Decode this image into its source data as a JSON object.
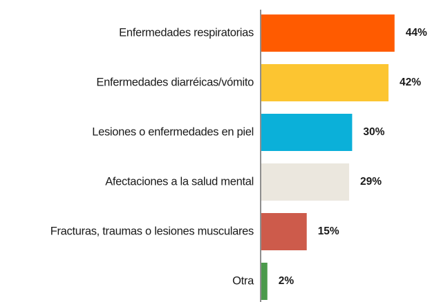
{
  "chart_data": {
    "type": "bar",
    "orientation": "horizontal",
    "categories": [
      "Enfermedades respiratorias",
      "Enfermedades diarréicas/vómito",
      "Lesiones o enfermedades en piel",
      "Afectaciones a la salud mental",
      "Fracturas, traumas o lesiones musculares",
      "Otra"
    ],
    "values": [
      44,
      42,
      30,
      29,
      15,
      2
    ],
    "value_labels": [
      "44%",
      "42%",
      "30%",
      "29%",
      "15%",
      "2%"
    ],
    "colors": [
      "#ff5b00",
      "#fcc531",
      "#0bb0d9",
      "#ebe7de",
      "#cd5b4b",
      "#4b9a4b"
    ]
  }
}
